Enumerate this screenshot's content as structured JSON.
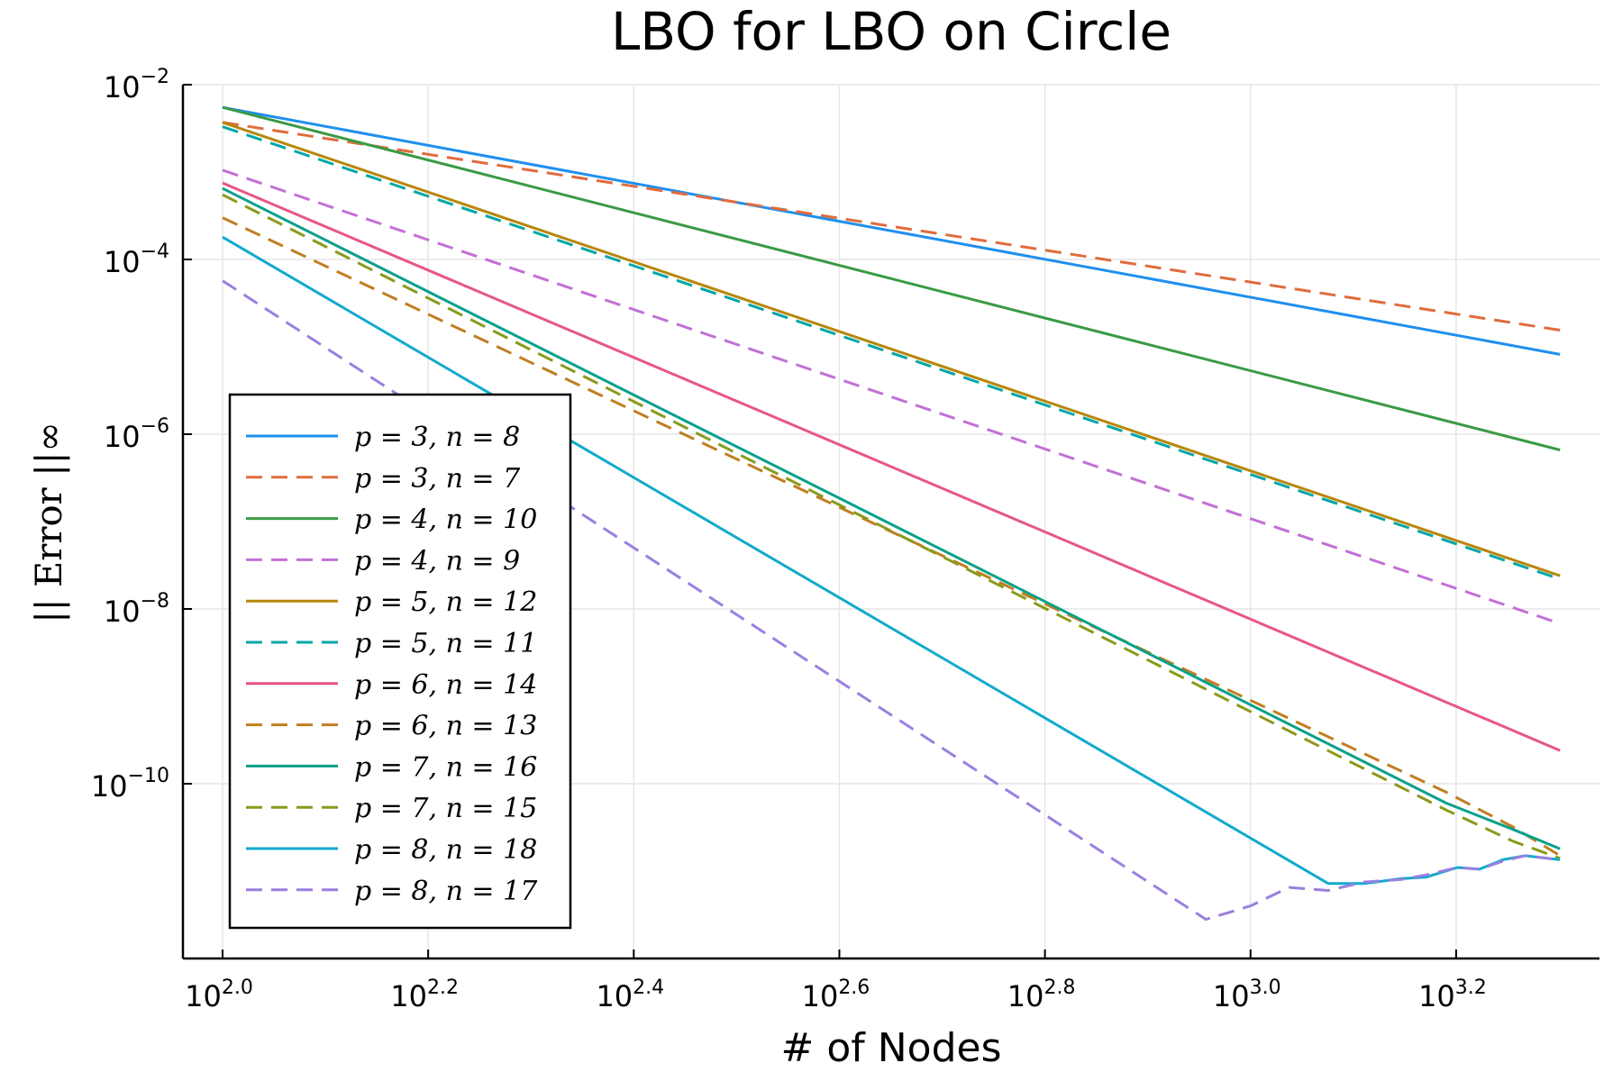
{
  "chart_data": {
    "type": "line",
    "title": "LBO for LBO on Circle",
    "xlabel": "# of Nodes",
    "ylabel": "|| Error ||∞",
    "x_scale": "log10",
    "y_scale": "log10",
    "xlim": [
      100,
      2100
    ],
    "ylim": [
      1e-12,
      0.01
    ],
    "x_ticks": [
      {
        "value": 100,
        "base": "10",
        "exp": "2.0"
      },
      {
        "value": 158.49,
        "base": "10",
        "exp": "2.2"
      },
      {
        "value": 251.19,
        "base": "10",
        "exp": "2.4"
      },
      {
        "value": 398.11,
        "base": "10",
        "exp": "2.6"
      },
      {
        "value": 630.96,
        "base": "10",
        "exp": "2.8"
      },
      {
        "value": 1000,
        "base": "10",
        "exp": "3.0"
      },
      {
        "value": 1584.9,
        "base": "10",
        "exp": "3.2"
      }
    ],
    "y_ticks": [
      {
        "value": 0.01,
        "base": "10",
        "exp": "−2"
      },
      {
        "value": 0.0001,
        "base": "10",
        "exp": "−4"
      },
      {
        "value": 1e-06,
        "base": "10",
        "exp": "−6"
      },
      {
        "value": 1e-08,
        "base": "10",
        "exp": "−8"
      },
      {
        "value": 1e-10,
        "base": "10",
        "exp": "−10"
      }
    ],
    "grid": true,
    "legend_position": "bottom-left",
    "series": [
      {
        "name": "p = 3, n = 8",
        "color": "#1f8fef",
        "dash": "solid",
        "x": [
          100,
          2000
        ],
        "y": [
          0.0055,
          8.2e-06
        ]
      },
      {
        "name": "p = 3, n = 7",
        "color": "#e06c3c",
        "dash": "dashed",
        "x": [
          100,
          2000
        ],
        "y": [
          0.0037,
          1.55e-05
        ]
      },
      {
        "name": "p = 4, n = 10",
        "color": "#3a9a44",
        "dash": "solid",
        "x": [
          100,
          2000
        ],
        "y": [
          0.0055,
          6.6e-07
        ]
      },
      {
        "name": "p = 4, n = 9",
        "color": "#c270d6",
        "dash": "dashed",
        "x": [
          100,
          2000
        ],
        "y": [
          0.00105,
          6.8e-09
        ]
      },
      {
        "name": "p = 5, n = 12",
        "color": "#b8860b",
        "dash": "solid",
        "x": [
          100,
          2000
        ],
        "y": [
          0.0037,
          2.4e-08
        ]
      },
      {
        "name": "p = 5, n = 11",
        "color": "#00a6a6",
        "dash": "dashed",
        "x": [
          100,
          2000
        ],
        "y": [
          0.0033,
          2.2e-08
        ]
      },
      {
        "name": "p = 6, n = 14",
        "color": "#e8558a",
        "dash": "solid",
        "x": [
          100,
          2000
        ],
        "y": [
          0.00075,
          2.4e-10
        ]
      },
      {
        "name": "p = 6, n = 13",
        "color": "#c07f20",
        "dash": "dashed",
        "x": [
          100,
          1550,
          1800,
          2000
        ],
        "y": [
          0.0003,
          8e-11,
          3.2e-11,
          1.5e-11
        ]
      },
      {
        "name": "p = 7, n = 16",
        "color": "#0aa08a",
        "dash": "solid",
        "x": [
          100,
          1550,
          1800,
          2000
        ],
        "y": [
          0.00065,
          6e-11,
          3e-11,
          1.8e-11
        ]
      },
      {
        "name": "p = 7, n = 15",
        "color": "#8a9a1a",
        "dash": "dashed",
        "x": [
          100,
          1550,
          1800,
          2000
        ],
        "y": [
          0.00055,
          5e-11,
          2.2e-11,
          1.4e-11
        ]
      },
      {
        "name": "p = 8, n = 18",
        "color": "#12aacc",
        "dash": "solid",
        "x": [
          100,
          1190,
          1290,
          1400,
          1480,
          1590,
          1670,
          1760,
          1850,
          2000
        ],
        "y": [
          0.00018,
          7.2e-12,
          7.2e-12,
          8.2e-12,
          8.5e-12,
          1.1e-11,
          1.05e-11,
          1.35e-11,
          1.5e-11,
          1.35e-11
        ]
      },
      {
        "name": "p = 8, n = 17",
        "color": "#9b7fe0",
        "dash": "dashed",
        "x": [
          100,
          905,
          1000,
          1090,
          1190,
          1290,
          1400,
          1480,
          1590,
          1670,
          1760,
          1850,
          2000
        ],
        "y": [
          5.7e-05,
          2.8e-12,
          4e-12,
          6.5e-12,
          6e-12,
          7.5e-12,
          8e-12,
          9e-12,
          1.1e-11,
          1.05e-11,
          1.3e-11,
          1.5e-11,
          1.35e-11
        ]
      }
    ]
  }
}
